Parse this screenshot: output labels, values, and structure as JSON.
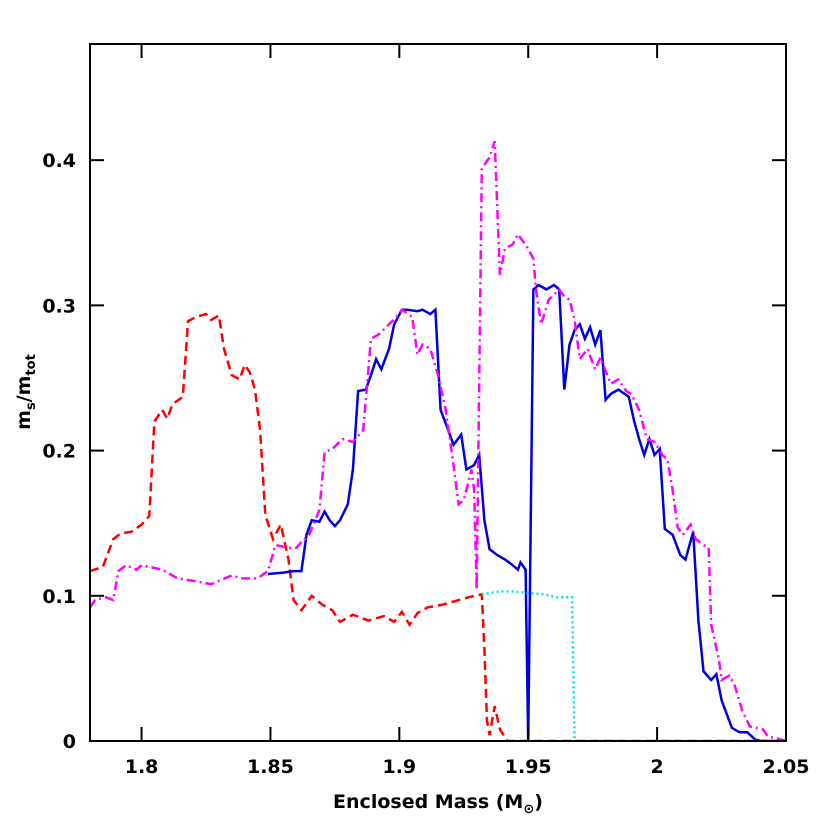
{
  "chart_data": {
    "type": "line",
    "xlabel": [
      "Enclosed Mass (M",
      "⊙",
      ")"
    ],
    "ylabel": [
      "m",
      "s",
      "/m",
      "tot"
    ],
    "xlim": [
      1.78,
      2.05
    ],
    "xticks": [
      1.8,
      1.85,
      1.9,
      1.95,
      2,
      2.05
    ],
    "ylim": [
      0,
      0.48
    ],
    "yticks": [
      0,
      0.1,
      0.2,
      0.3,
      0.4
    ],
    "series": [
      {
        "color": "#ff0000",
        "dash": "dashed",
        "x": [
          1.78,
          1.785,
          1.789,
          1.792,
          1.796,
          1.8,
          1.803,
          1.805,
          1.808,
          1.81,
          1.812,
          1.816,
          1.818,
          1.821,
          1.825,
          1.827,
          1.83,
          1.832,
          1.835,
          1.838,
          1.84,
          1.842,
          1.844,
          1.846,
          1.848,
          1.851,
          1.854,
          1.857,
          1.859,
          1.862,
          1.866,
          1.87,
          1.874,
          1.877,
          1.882,
          1.888,
          1.894,
          1.898,
          1.901,
          1.904,
          1.907,
          1.911,
          1.917,
          1.923,
          1.927,
          1.932,
          1.933,
          1.934,
          1.935,
          1.937,
          1.939,
          1.942,
          2.05
        ],
        "values": [
          0.117,
          0.12,
          0.139,
          0.143,
          0.144,
          0.149,
          0.155,
          0.22,
          0.228,
          0.222,
          0.232,
          0.237,
          0.289,
          0.292,
          0.294,
          0.29,
          0.293,
          0.27,
          0.252,
          0.249,
          0.259,
          0.254,
          0.242,
          0.214,
          0.156,
          0.139,
          0.149,
          0.125,
          0.097,
          0.09,
          0.1,
          0.094,
          0.09,
          0.082,
          0.087,
          0.083,
          0.086,
          0.082,
          0.089,
          0.08,
          0.088,
          0.092,
          0.094,
          0.097,
          0.099,
          0.101,
          0.063,
          0.014,
          0.004,
          0.024,
          0.008,
          0,
          0
        ]
      },
      {
        "color": "#0000dd",
        "dash": "solid",
        "x": [
          1.849,
          1.855,
          1.859,
          1.862,
          1.864,
          1.866,
          1.869,
          1.871,
          1.873,
          1.875,
          1.877,
          1.88,
          1.882,
          1.884,
          1.887,
          1.889,
          1.891,
          1.893,
          1.896,
          1.898,
          1.901,
          1.903,
          1.907,
          1.909,
          1.912,
          1.914,
          1.916,
          1.919,
          1.921,
          1.924,
          1.926,
          1.929,
          1.931,
          1.933,
          1.935,
          1.938,
          1.941,
          1.944,
          1.946,
          1.947,
          1.949,
          1.95,
          1.952,
          1.954,
          1.957,
          1.96,
          1.962,
          1.964,
          1.966,
          1.968,
          1.97,
          1.972,
          1.974,
          1.976,
          1.978,
          1.98,
          1.982,
          1.985,
          1.989,
          1.991,
          1.993,
          1.995,
          1.997,
          1.999,
          2.001,
          2.003,
          2.006,
          2.009,
          2.011,
          2.014,
          2.016,
          2.018,
          2.021,
          2.023,
          2.025,
          2.029,
          2.032,
          2.035,
          2.038,
          2.04,
          2.05
        ],
        "values": [
          0.115,
          0.116,
          0.117,
          0.117,
          0.142,
          0.152,
          0.151,
          0.158,
          0.152,
          0.148,
          0.152,
          0.163,
          0.187,
          0.241,
          0.242,
          0.252,
          0.263,
          0.256,
          0.27,
          0.287,
          0.297,
          0.297,
          0.296,
          0.297,
          0.294,
          0.297,
          0.228,
          0.214,
          0.204,
          0.211,
          0.187,
          0.19,
          0.197,
          0.152,
          0.132,
          0.128,
          0.125,
          0.121,
          0.118,
          0.123,
          0.118,
          0,
          0.311,
          0.314,
          0.311,
          0.314,
          0.311,
          0.242,
          0.273,
          0.283,
          0.287,
          0.277,
          0.285,
          0.273,
          0.283,
          0.235,
          0.239,
          0.242,
          0.237,
          0.221,
          0.208,
          0.197,
          0.208,
          0.197,
          0.201,
          0.146,
          0.142,
          0.128,
          0.125,
          0.144,
          0.083,
          0.048,
          0.042,
          0.046,
          0.028,
          0.009,
          0.006,
          0.006,
          0.001,
          0,
          0
        ]
      },
      {
        "color": "#ff00ff",
        "dash": "dashdot",
        "x": [
          1.78,
          1.782,
          1.786,
          1.789,
          1.791,
          1.794,
          1.798,
          1.8,
          1.808,
          1.814,
          1.821,
          1.827,
          1.831,
          1.835,
          1.839,
          1.845,
          1.849,
          1.852,
          1.857,
          1.86,
          1.862,
          1.865,
          1.869,
          1.871,
          1.874,
          1.878,
          1.882,
          1.886,
          1.889,
          1.892,
          1.896,
          1.899,
          1.901,
          1.905,
          1.907,
          1.909,
          1.912,
          1.915,
          1.918,
          1.921,
          1.923,
          1.925,
          1.928,
          1.929,
          1.93,
          1.932,
          1.935,
          1.937,
          1.939,
          1.941,
          1.944,
          1.946,
          1.95,
          1.952,
          1.953,
          1.955,
          1.958,
          1.962,
          1.964,
          1.966,
          1.968,
          1.97,
          1.973,
          1.976,
          1.978,
          1.982,
          1.985,
          1.988,
          1.99,
          1.993,
          1.996,
          1.999,
          2.002,
          2.004,
          2.006,
          2.008,
          2.01,
          2.013,
          2.015,
          2.018,
          2.02,
          2.021,
          2.024,
          2.025,
          2.028,
          2.03,
          2.033,
          2.036,
          2.041,
          2.043,
          2.046,
          2.05
        ],
        "values": [
          0.092,
          0.097,
          0.099,
          0.097,
          0.117,
          0.121,
          0.118,
          0.121,
          0.118,
          0.112,
          0.11,
          0.108,
          0.111,
          0.114,
          0.112,
          0.112,
          0.117,
          0.135,
          0.133,
          0.133,
          0.137,
          0.142,
          0.159,
          0.199,
          0.201,
          0.208,
          0.206,
          0.214,
          0.277,
          0.28,
          0.287,
          0.292,
          0.297,
          0.292,
          0.266,
          0.273,
          0.27,
          0.252,
          0.228,
          0.19,
          0.163,
          0.166,
          0.187,
          0.173,
          0.104,
          0.394,
          0.402,
          0.413,
          0.321,
          0.339,
          0.342,
          0.349,
          0.339,
          0.332,
          0.311,
          0.287,
          0.304,
          0.311,
          0.306,
          0.304,
          0.29,
          0.263,
          0.27,
          0.256,
          0.264,
          0.246,
          0.249,
          0.241,
          0.239,
          0.228,
          0.208,
          0.206,
          0.197,
          0.194,
          0.173,
          0.147,
          0.142,
          0.149,
          0.139,
          0.135,
          0.133,
          0.08,
          0.056,
          0.042,
          0.045,
          0.039,
          0.021,
          0.01,
          0.008,
          0.003,
          0.002,
          0
        ]
      },
      {
        "color": "#00e5e5",
        "dash": "dotted",
        "x": [
          1.932,
          1.939,
          1.944,
          1.95,
          1.956,
          1.961,
          1.965,
          1.967,
          1.968,
          2.05
        ],
        "values": [
          0.101,
          0.103,
          0.103,
          0.102,
          0.101,
          0.099,
          0.099,
          0.099,
          0,
          0
        ]
      }
    ]
  }
}
